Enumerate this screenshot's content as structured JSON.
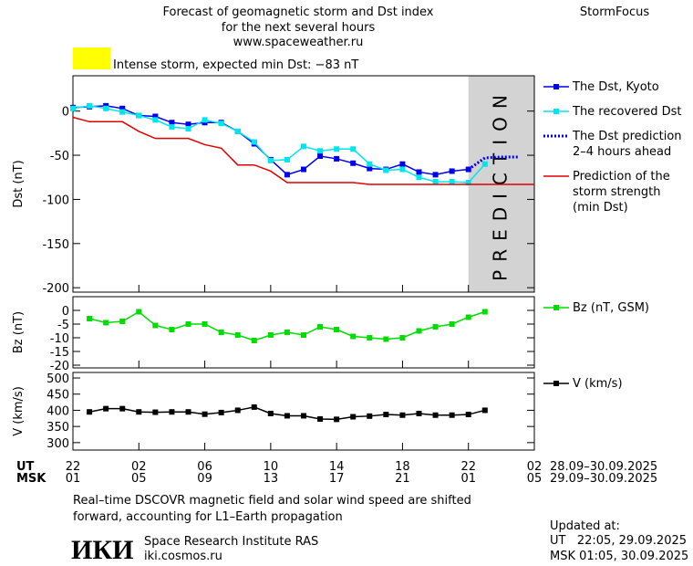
{
  "header": {
    "title": [
      "Forecast of geomagnetic storm and Dst index",
      "for the next several hours"
    ],
    "url": "www.spaceweather.ru",
    "brand": "StormFocus",
    "alert": "Intense storm, expected min Dst: −83 nT",
    "alert_color": "#ffff00"
  },
  "chart_data": [
    {
      "type": "line",
      "ylabel": "Dst (nT)",
      "xlim": [
        0,
        28
      ],
      "ylim": [
        -205,
        40
      ],
      "yticks": [
        0,
        -50,
        -100,
        -150,
        -200
      ],
      "prediction_band": {
        "label": "PREDICTION",
        "xlim": [
          24,
          28
        ],
        "color": "#d3d3d3"
      },
      "series": [
        {
          "name": "The Dst, Kyoto",
          "color": "#0000ee",
          "marker": "square",
          "line_style": "solid",
          "x": [
            0,
            1,
            2,
            3,
            4,
            5,
            6,
            7,
            8,
            9,
            10,
            11,
            12,
            13,
            14,
            15,
            16,
            17,
            18,
            19,
            20,
            21,
            22,
            23,
            24
          ],
          "values": [
            4,
            5,
            6,
            3,
            -5,
            -6,
            -13,
            -15,
            -13,
            -13,
            -23,
            -37,
            -55,
            -72,
            -66,
            -51,
            -54,
            -59,
            -65,
            -66,
            -60,
            -69,
            -72,
            -68,
            -66
          ]
        },
        {
          "name": "The recovered Dst",
          "color": "#00e5ee",
          "marker": "square",
          "line_style": "solid",
          "x": [
            0,
            1,
            2,
            3,
            4,
            5,
            6,
            7,
            8,
            9,
            10,
            11,
            12,
            13,
            14,
            15,
            16,
            17,
            18,
            19,
            20,
            21,
            22,
            23,
            24,
            25
          ],
          "values": [
            3,
            6,
            3,
            -1,
            -5,
            -10,
            -18,
            -20,
            -10,
            -14,
            -23,
            -35,
            -56,
            -55,
            -40,
            -45,
            -43,
            -43,
            -60,
            -67,
            -66,
            -75,
            -80,
            -80,
            -81,
            -60
          ]
        },
        {
          "name": "The Dst prediction\n2–4 hours ahead",
          "color": "#0000ee",
          "marker": "none",
          "line_style": "dotted",
          "x": [
            24,
            25,
            26,
            27
          ],
          "values": [
            -66,
            -53,
            -52,
            -52
          ]
        },
        {
          "name": "Prediction of the\nstorm strength\n(min Dst)",
          "color": "#e00000",
          "marker": "none",
          "line_style": "solid",
          "x": [
            0,
            1,
            2,
            3,
            4,
            5,
            6,
            7,
            8,
            9,
            10,
            11,
            12,
            13,
            14,
            15,
            16,
            17,
            18,
            19,
            20,
            21,
            22,
            23,
            24,
            25,
            26,
            27,
            28
          ],
          "values": [
            -7,
            -12,
            -12,
            -12,
            -23,
            -31,
            -31,
            -31,
            -38,
            -42,
            -61,
            -61,
            -68,
            -81,
            -81,
            -81,
            -81,
            -81,
            -83,
            -83,
            -83,
            -83,
            -83,
            -83,
            -83,
            -83,
            -83,
            -83,
            -83
          ]
        }
      ]
    },
    {
      "type": "line",
      "ylabel": "Bz (nT)",
      "xlim": [
        0,
        28
      ],
      "ylim": [
        -21,
        5
      ],
      "yticks": [
        0,
        -5,
        -10,
        -15,
        -20
      ],
      "series": [
        {
          "name": "Bz (nT, GSM)",
          "color": "#00dd00",
          "marker": "square",
          "line_style": "solid",
          "x": [
            1,
            2,
            3,
            4,
            5,
            6,
            7,
            8,
            9,
            10,
            11,
            12,
            13,
            14,
            15,
            16,
            17,
            18,
            19,
            20,
            21,
            22,
            23,
            24,
            25
          ],
          "values": [
            -3,
            -4.5,
            -4,
            -0.5,
            -5.5,
            -7,
            -5,
            -5,
            -8,
            -9,
            -11,
            -9,
            -8,
            -9,
            -6,
            -7,
            -9.5,
            -10,
            -10.5,
            -10,
            -7.5,
            -6,
            -5,
            -2.5,
            -0.5
          ]
        }
      ]
    },
    {
      "type": "line",
      "ylabel": "V (km/s)",
      "xlim": [
        0,
        28
      ],
      "ylim": [
        277,
        517
      ],
      "yticks": [
        500,
        450,
        400,
        350,
        300
      ],
      "series": [
        {
          "name": "V (km/s)",
          "color": "#000000",
          "marker": "square",
          "line_style": "solid",
          "x": [
            1,
            2,
            3,
            4,
            5,
            6,
            7,
            8,
            9,
            10,
            11,
            12,
            13,
            14,
            15,
            16,
            17,
            18,
            19,
            20,
            21,
            22,
            23,
            24,
            25
          ],
          "values": [
            395,
            405,
            405,
            395,
            394,
            395,
            395,
            388,
            393,
            400,
            410,
            390,
            383,
            383,
            373,
            372,
            380,
            382,
            387,
            385,
            390,
            385,
            385,
            387,
            400
          ]
        }
      ]
    }
  ],
  "x_axis": {
    "ut_label": "UT",
    "msk_label": "MSK",
    "ut_ticks": [
      {
        "value": 0,
        "label": "22"
      },
      {
        "value": 4,
        "label": "02"
      },
      {
        "value": 8,
        "label": "06"
      },
      {
        "value": 12,
        "label": "10"
      },
      {
        "value": 16,
        "label": "14"
      },
      {
        "value": 20,
        "label": "18"
      },
      {
        "value": 24,
        "label": "22"
      },
      {
        "value": 28,
        "label": "02"
      }
    ],
    "msk_ticks": [
      "01",
      "05",
      "09",
      "13",
      "17",
      "21",
      "01",
      "05"
    ],
    "ut_range": "28.09–30.09.2025",
    "msk_range": "29.09–30.09.2025"
  },
  "note": [
    "Real–time DSCOVR magnetic field and solar wind speed are shifted",
    "forward, accounting for L1–Earth propagation"
  ],
  "footer": {
    "logo": "ИКИ",
    "institute": "Space Research Institute RAS",
    "site": "iki.cosmos.ru",
    "updated_label": "Updated at:",
    "updated_ut": "UT   22:05, 29.09.2025",
    "updated_msk": "MSK 01:05, 30.09.2025"
  }
}
